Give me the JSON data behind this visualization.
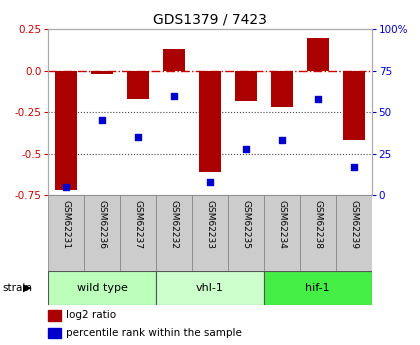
{
  "title": "GDS1379 / 7423",
  "samples": [
    "GSM62231",
    "GSM62236",
    "GSM62237",
    "GSM62232",
    "GSM62233",
    "GSM62235",
    "GSM62234",
    "GSM62238",
    "GSM62239"
  ],
  "log2_ratio": [
    -0.72,
    -0.02,
    -0.17,
    0.13,
    -0.61,
    -0.18,
    -0.22,
    0.2,
    -0.42
  ],
  "percentile_rank": [
    5,
    45,
    35,
    60,
    8,
    28,
    33,
    58,
    17
  ],
  "groups": [
    {
      "name": "wild type",
      "start": 0,
      "end": 3,
      "color": "#bbffbb"
    },
    {
      "name": "vhl-1",
      "start": 3,
      "end": 6,
      "color": "#ccffcc"
    },
    {
      "name": "hif-1",
      "start": 6,
      "end": 9,
      "color": "#44ee44"
    }
  ],
  "ylim_left": [
    -0.75,
    0.25
  ],
  "ylim_right": [
    0,
    100
  ],
  "bar_color": "#aa0000",
  "dot_color": "#0000cc",
  "zero_line_color": "#cc0000",
  "grid_color": "#444444",
  "bg_color": "#ffffff",
  "label_color_left": "#cc0000",
  "label_color_right": "#0000cc",
  "legend_bar_label": "log2 ratio",
  "legend_dot_label": "percentile rank within the sample",
  "left_ticks": [
    0.25,
    0.0,
    -0.25,
    -0.5,
    -0.75
  ],
  "right_ticks": [
    100,
    75,
    50,
    25,
    0
  ]
}
